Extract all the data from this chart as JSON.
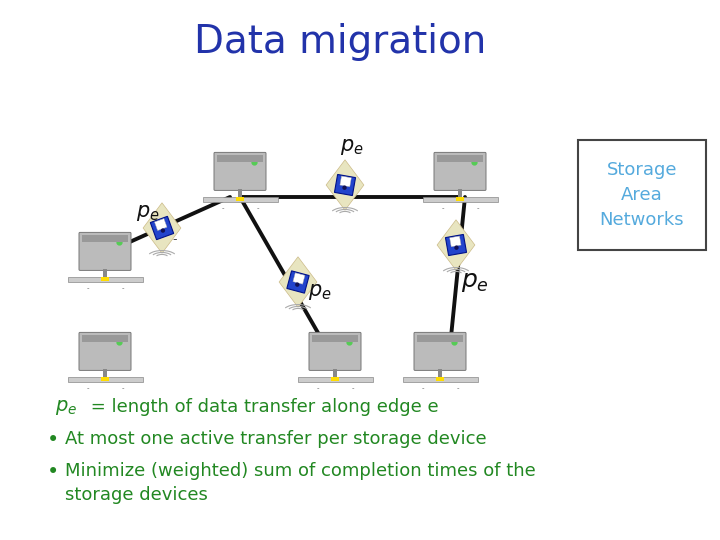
{
  "title": "Data migration",
  "title_color": "#2233AA",
  "title_fontsize": 28,
  "bg_color": "#FFFFFF",
  "text_color_green": "#228822",
  "san_box_color": "#55AADD",
  "san_label": "Storage\nArea\nNetworks",
  "san_fontsize": 13,
  "bullet_line1_pe": "p",
  "bullet_line1_rest": " = length of data transfer along edge e",
  "bullet_line2": "At most one active transfer per storage device",
  "bullet_line3": "Minimize (weighted) sum of completion times of the",
  "bullet_line3b": "storage devices",
  "server_color_body": "#BBBBBB",
  "server_color_edge": "#777777",
  "server_color_green": "#55CC55",
  "server_color_yellow": "#FFDD00",
  "floppy_beige": "#E8E5C0",
  "floppy_blue": "#2244CC",
  "floppy_blue_dark": "#001188",
  "floppy_white": "#FFFFFF",
  "edge_color": "#111111",
  "pe_color": "#111111",
  "pe_fontsize": 15
}
